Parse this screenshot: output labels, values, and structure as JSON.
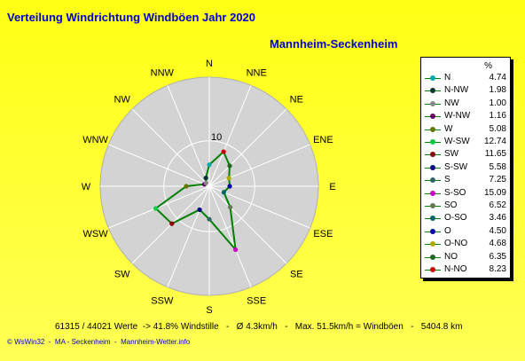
{
  "title": "Verteilung Windrichtung Windböen  Jahr 2020",
  "station": "Mannheim-Seckenheim",
  "legend_unit": "%",
  "stats_line": "61315 / 44021 Werte  -> 41.8% Windstille   -   Ø 4.3km/h   -   Max. 51.5km/h = Windböen   -   5404.8 km",
  "footer": "© WsWin32  -  MA - Seckenheim  -  Mannheim-Wetter.info",
  "colors": {
    "background": "#ffff33",
    "title": "#0000cc",
    "polar_disc": "#d3d3d3",
    "series_line": "#008000"
  },
  "chart_data": {
    "type": "radar",
    "title": "Verteilung Windrichtung Windböen  Jahr 2020",
    "unit": "%",
    "directions": [
      "N",
      "NNE",
      "NE",
      "ENE",
      "E",
      "ESE",
      "SE",
      "SSE",
      "S",
      "SSW",
      "SW",
      "WSW",
      "W",
      "WNW",
      "NW",
      "NNW"
    ],
    "ring_label": "10",
    "ring_value": 10,
    "rmax": 24,
    "series": [
      {
        "name": "N",
        "direction": "N",
        "value": 4.74,
        "color": "#00aaaa"
      },
      {
        "name": "N-NW",
        "direction": "NNW",
        "value": 1.98,
        "color": "#003333"
      },
      {
        "name": "NW",
        "direction": "NW",
        "value": 1.0,
        "color": "#888888"
      },
      {
        "name": "W-NW",
        "direction": "WNW",
        "value": 1.16,
        "color": "#660066"
      },
      {
        "name": "W",
        "direction": "W",
        "value": 5.08,
        "color": "#667700"
      },
      {
        "name": "W-SW",
        "direction": "WSW",
        "value": 12.74,
        "color": "#00cc44"
      },
      {
        "name": "SW",
        "direction": "SW",
        "value": 11.65,
        "color": "#880000"
      },
      {
        "name": "S-SW",
        "direction": "SSW",
        "value": 5.58,
        "color": "#000088"
      },
      {
        "name": "S",
        "direction": "S",
        "value": 7.25,
        "color": "#336666"
      },
      {
        "name": "S-SO",
        "direction": "SSE",
        "value": 15.09,
        "color": "#cc00cc"
      },
      {
        "name": "SO",
        "direction": "SE",
        "value": 6.52,
        "color": "#667755"
      },
      {
        "name": "O-SO",
        "direction": "ESE",
        "value": 3.46,
        "color": "#006666"
      },
      {
        "name": "O",
        "direction": "E",
        "value": 4.5,
        "color": "#0000aa"
      },
      {
        "name": "O-NO",
        "direction": "ENE",
        "value": 4.68,
        "color": "#aaaa00"
      },
      {
        "name": "NO",
        "direction": "NE",
        "value": 6.35,
        "color": "#226622"
      },
      {
        "name": "N-NO",
        "direction": "NNE",
        "value": 8.23,
        "color": "#cc0000"
      }
    ]
  }
}
